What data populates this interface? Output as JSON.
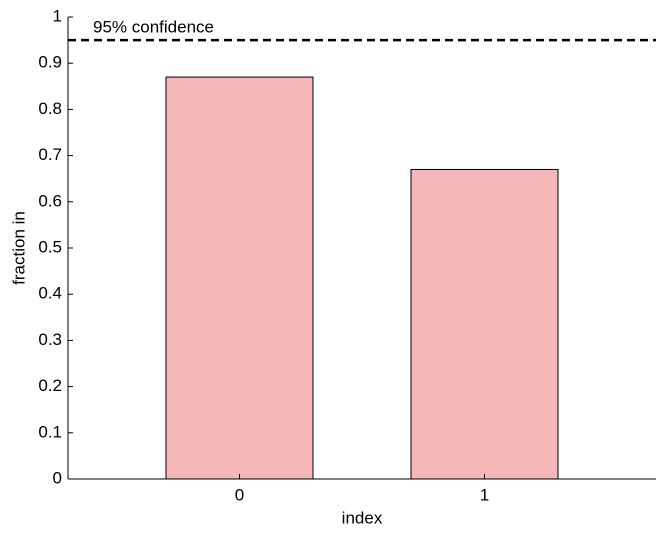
{
  "chart_data": {
    "type": "bar",
    "xlabel": "index",
    "ylabel": "fraction in",
    "categories": [
      "0",
      "1"
    ],
    "values": [
      0.87,
      0.67
    ],
    "color": "#f4b6b6",
    "ylim": [
      0,
      1
    ],
    "yticks": [
      0,
      0.1,
      0.2,
      0.3,
      0.4,
      0.5,
      0.6,
      0.7,
      0.8,
      0.9,
      1
    ],
    "reference_line": {
      "value": 0.95,
      "label": "95% confidence"
    }
  }
}
